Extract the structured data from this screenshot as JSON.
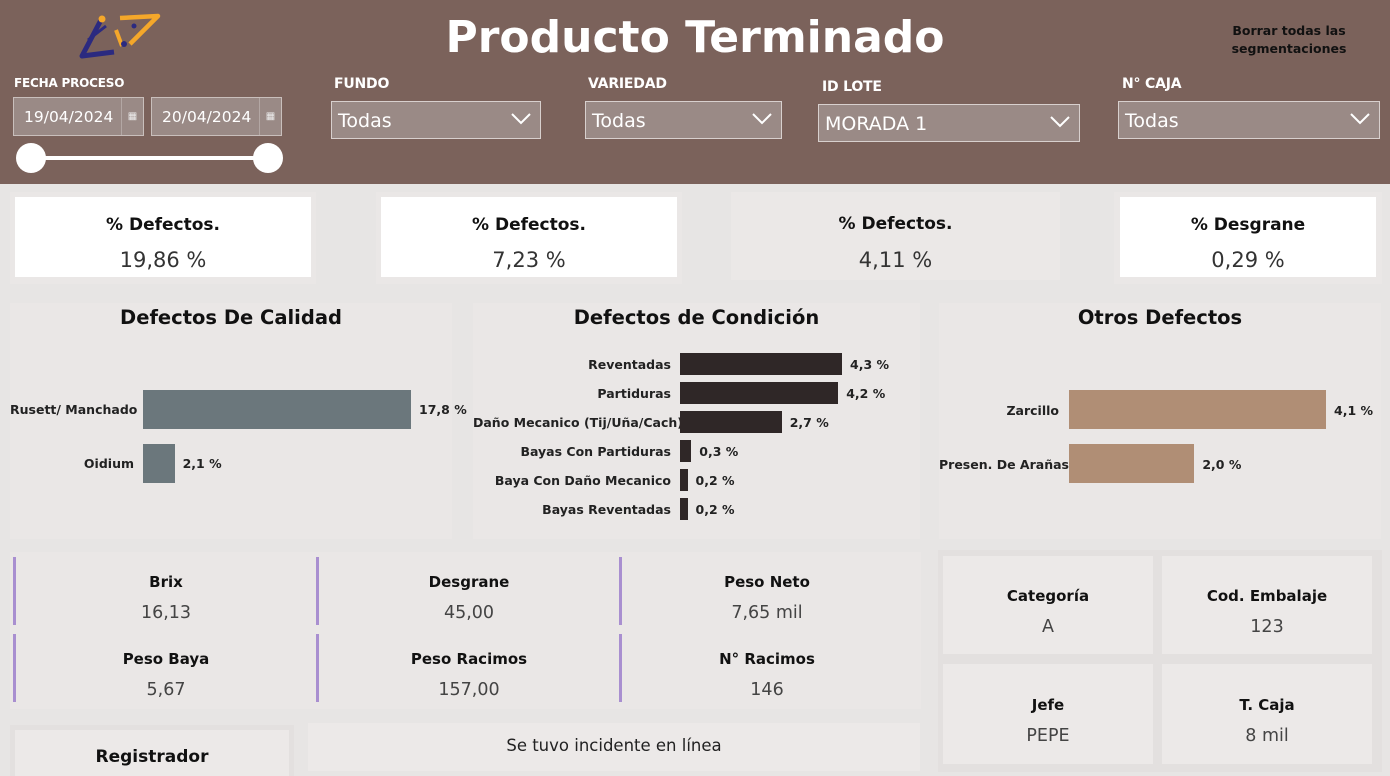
{
  "header": {
    "title": "Producto Terminado",
    "clear_button": "Borrar todas las segmentaciones",
    "logo": "logo-icon",
    "colors": {
      "header_bg": "#7b625b",
      "slicer_bg": "#9a8a86",
      "logo_navy": "#2b2a80",
      "logo_orange": "#f4a72a"
    }
  },
  "slicers": {
    "fecha": {
      "label": "FECHA PROCESO",
      "start": "19/04/2024",
      "end": "20/04/2024",
      "range_fraction": [
        0.0,
        1.0
      ]
    },
    "fundo": {
      "label": "FUNDO",
      "value": "Todas"
    },
    "variedad": {
      "label": "VARIEDAD",
      "value": "Todas"
    },
    "id_lote": {
      "label": "ID LOTE",
      "value": "MORADA 1"
    },
    "caja": {
      "label": "N° CAJA",
      "value": "Todas"
    }
  },
  "kpis": [
    {
      "label": "% Defectos.",
      "value": "19,86 %"
    },
    {
      "label": "% Defectos.",
      "value": "7,23 %"
    },
    {
      "label": "% Defectos.",
      "value": "4,11 %"
    },
    {
      "label": "% Desgrane",
      "value": "0,29 %"
    }
  ],
  "chart_data": [
    {
      "type": "bar",
      "orientation": "horizontal",
      "title": "Defectos De Calidad",
      "categories": [
        "Rusett/ Manchado",
        "Oidium"
      ],
      "values": [
        17.8,
        2.1
      ],
      "data_labels": [
        "17,8 %",
        "2,1 %"
      ],
      "color": "#6b777c",
      "xlim": [
        0,
        17.8
      ]
    },
    {
      "type": "bar",
      "orientation": "horizontal",
      "title": "Defectos de Condición",
      "categories": [
        "Reventadas",
        "Partiduras",
        "Daño Mecanico (Tij/Uña/Cach)",
        "Bayas Con Partiduras",
        "Baya Con Daño Mecanico",
        "Bayas Reventadas"
      ],
      "values": [
        4.3,
        4.2,
        2.7,
        0.3,
        0.2,
        0.2
      ],
      "data_labels": [
        "4,3 %",
        "4,2 %",
        "2,7 %",
        "0,3 %",
        "0,2 %",
        "0,2 %"
      ],
      "color": "#2f2727",
      "xlim": [
        0,
        4.3
      ]
    },
    {
      "type": "bar",
      "orientation": "horizontal",
      "title": "Otros Defectos",
      "categories": [
        "Zarcillo",
        "Presen. De Arañas"
      ],
      "values": [
        4.1,
        2.0
      ],
      "data_labels": [
        "4,1 %",
        "2,0 %"
      ],
      "color": "#b08e75",
      "xlim": [
        0,
        4.1
      ]
    }
  ],
  "metrics": [
    {
      "label": "Brix",
      "value": "16,13"
    },
    {
      "label": "Desgrane",
      "value": "45,00"
    },
    {
      "label": "Peso Neto",
      "value": "7,65 mil"
    },
    {
      "label": "Peso Baya",
      "value": "5,67"
    },
    {
      "label": "Peso Racimos",
      "value": "157,00"
    },
    {
      "label": "N° Racimos",
      "value": "146"
    }
  ],
  "info_tiles": [
    {
      "label": "Categoría",
      "value": "A"
    },
    {
      "label": "Cod. Embalaje",
      "value": "123"
    },
    {
      "label": "Jefe",
      "value": "PEPE"
    },
    {
      "label": "T. Caja",
      "value": "8 mil"
    }
  ],
  "footer": {
    "registrador_label": "Registrador",
    "incident_text": "Se tuvo incidente en línea"
  }
}
